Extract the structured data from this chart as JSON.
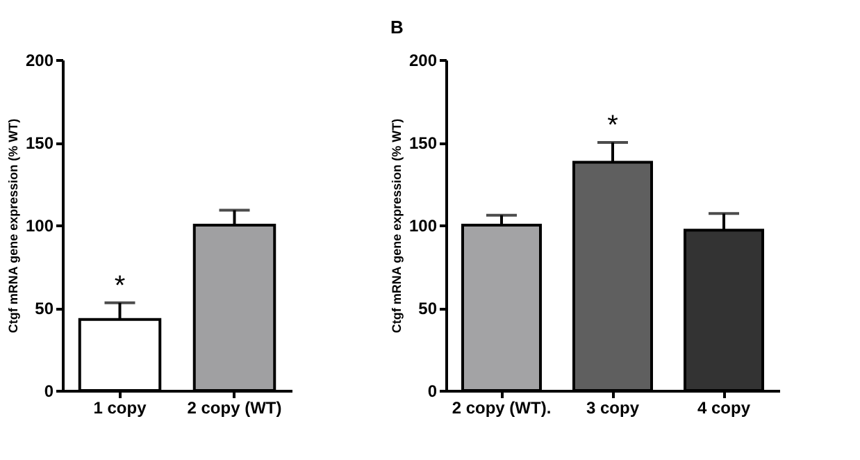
{
  "chart_data": [
    {
      "type": "bar",
      "ylabel": "Ctgf mRNA gene expression (% WT)",
      "categories": [
        "1 copy",
        "2 copy (WT)"
      ],
      "values": [
        43,
        100
      ],
      "colors": [
        "#ffffff",
        "#a0a0a2"
      ],
      "errors": [
        [
          43,
          53
        ],
        [
          100,
          109
        ]
      ],
      "ylim": [
        0,
        200
      ],
      "yticks": [
        0,
        50,
        100,
        150,
        200
      ],
      "grid": false,
      "annotations": [
        {
          "text": "*",
          "x": "1 copy",
          "y": 53
        }
      ]
    },
    {
      "type": "bar",
      "title": "B",
      "ylabel": "Ctgf mRNA gene expression (% WT)",
      "categories": [
        "2 copy (WT).",
        "3 copy",
        "4 copy"
      ],
      "values": [
        100,
        138,
        97
      ],
      "colors": [
        "#a3a3a5",
        "#5f5f5f",
        "#333333"
      ],
      "errors": [
        [
          100,
          106
        ],
        [
          138,
          150
        ],
        [
          97,
          107
        ]
      ],
      "ylim": [
        0,
        200
      ],
      "yticks": [
        0,
        50,
        100,
        150,
        200
      ],
      "grid": false,
      "annotations": [
        {
          "text": "*",
          "x": "3 copy",
          "y": 150
        }
      ]
    }
  ]
}
